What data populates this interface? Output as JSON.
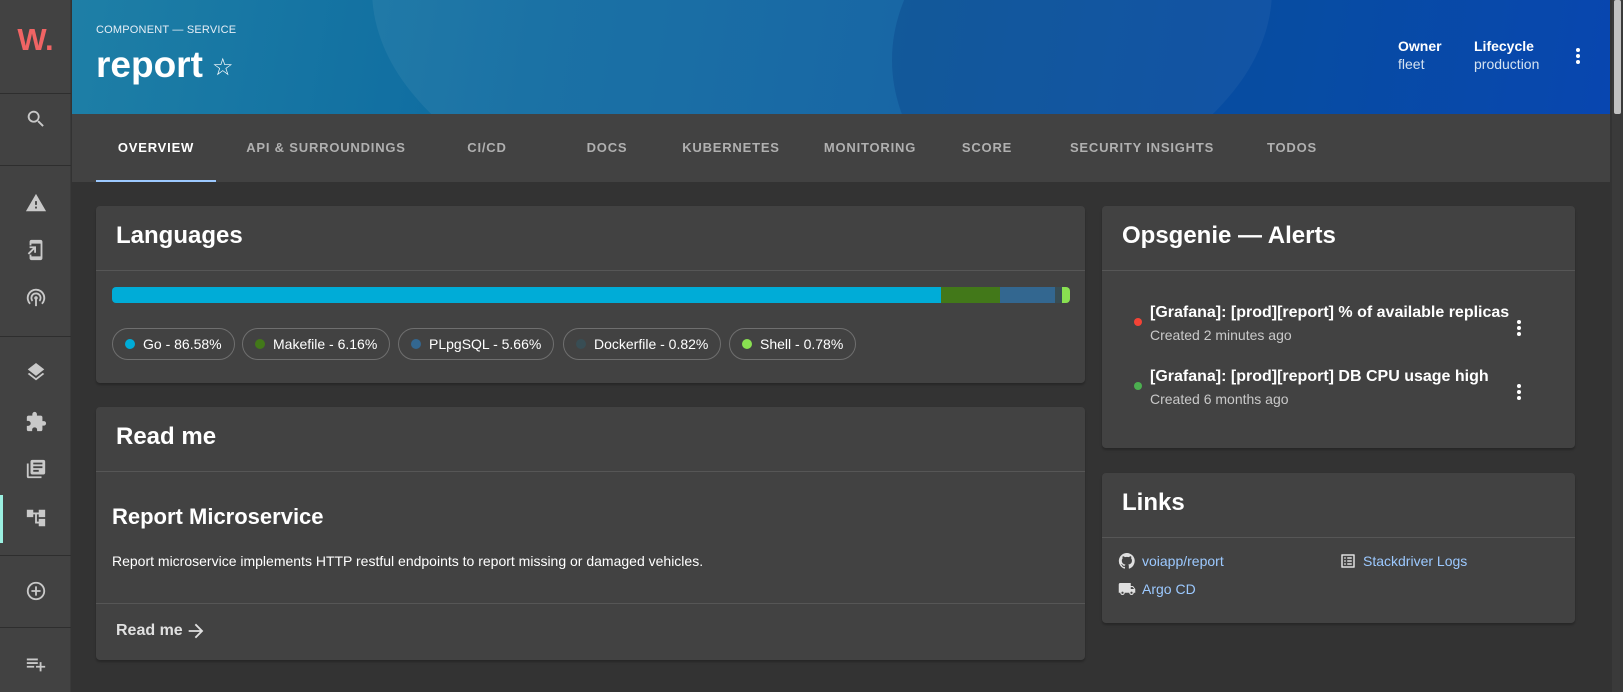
{
  "sidebar": {
    "logo": "W.",
    "icons": [
      "search-icon",
      "warning-icon",
      "device-hub-icon",
      "broadcast-icon",
      "layers-icon",
      "extension-icon",
      "library-books-icon",
      "account-tree-icon",
      "add-circle-icon",
      "playlist-add-icon"
    ]
  },
  "header": {
    "breadcrumb": "COMPONENT — SERVICE",
    "title": "report",
    "star": "☆",
    "owner_label": "Owner",
    "owner_value": "fleet",
    "lifecycle_label": "Lifecycle",
    "lifecycle_value": "production"
  },
  "tabs": [
    {
      "label": "OVERVIEW",
      "active": true
    },
    {
      "label": "API & SURROUNDINGS"
    },
    {
      "label": "CI/CD"
    },
    {
      "label": "DOCS"
    },
    {
      "label": "KUBERNETES"
    },
    {
      "label": "MONITORING"
    },
    {
      "label": "SCORE"
    },
    {
      "label": "SECURITY INSIGHTS"
    },
    {
      "label": "TODOS"
    }
  ],
  "languages": {
    "title": "Languages",
    "items": [
      {
        "label": "Go - 86.58%",
        "percent": 86.58,
        "color": "#00acd7"
      },
      {
        "label": "Makefile - 6.16%",
        "percent": 6.16,
        "color": "#427819"
      },
      {
        "label": "PLpgSQL - 5.66%",
        "percent": 5.66,
        "color": "#336790"
      },
      {
        "label": "Dockerfile - 0.82%",
        "percent": 0.82,
        "color": "#384d54"
      },
      {
        "label": "Shell - 0.78%",
        "percent": 0.78,
        "color": "#89e051"
      }
    ]
  },
  "readme": {
    "title": "Read me",
    "heading": "Report Microservice",
    "body": "Report microservice implements HTTP restful endpoints to report missing or damaged vehicles.",
    "link_label": "Read me"
  },
  "alerts": {
    "title": "Opsgenie — Alerts",
    "items": [
      {
        "title": "[Grafana]: [prod][report] % of available replicas",
        "subtitle": "Created 2 minutes ago",
        "color": "#f44336"
      },
      {
        "title": "[Grafana]: [prod][report] DB CPU usage high",
        "subtitle": "Created 6 months ago",
        "color": "#4caf50"
      }
    ]
  },
  "links": {
    "title": "Links",
    "items": [
      {
        "label": "voiapp/report",
        "icon": "github-icon"
      },
      {
        "label": "Stackdriver Logs",
        "icon": "list-alt-icon"
      },
      {
        "label": "Argo CD",
        "icon": "truck-icon"
      }
    ]
  }
}
